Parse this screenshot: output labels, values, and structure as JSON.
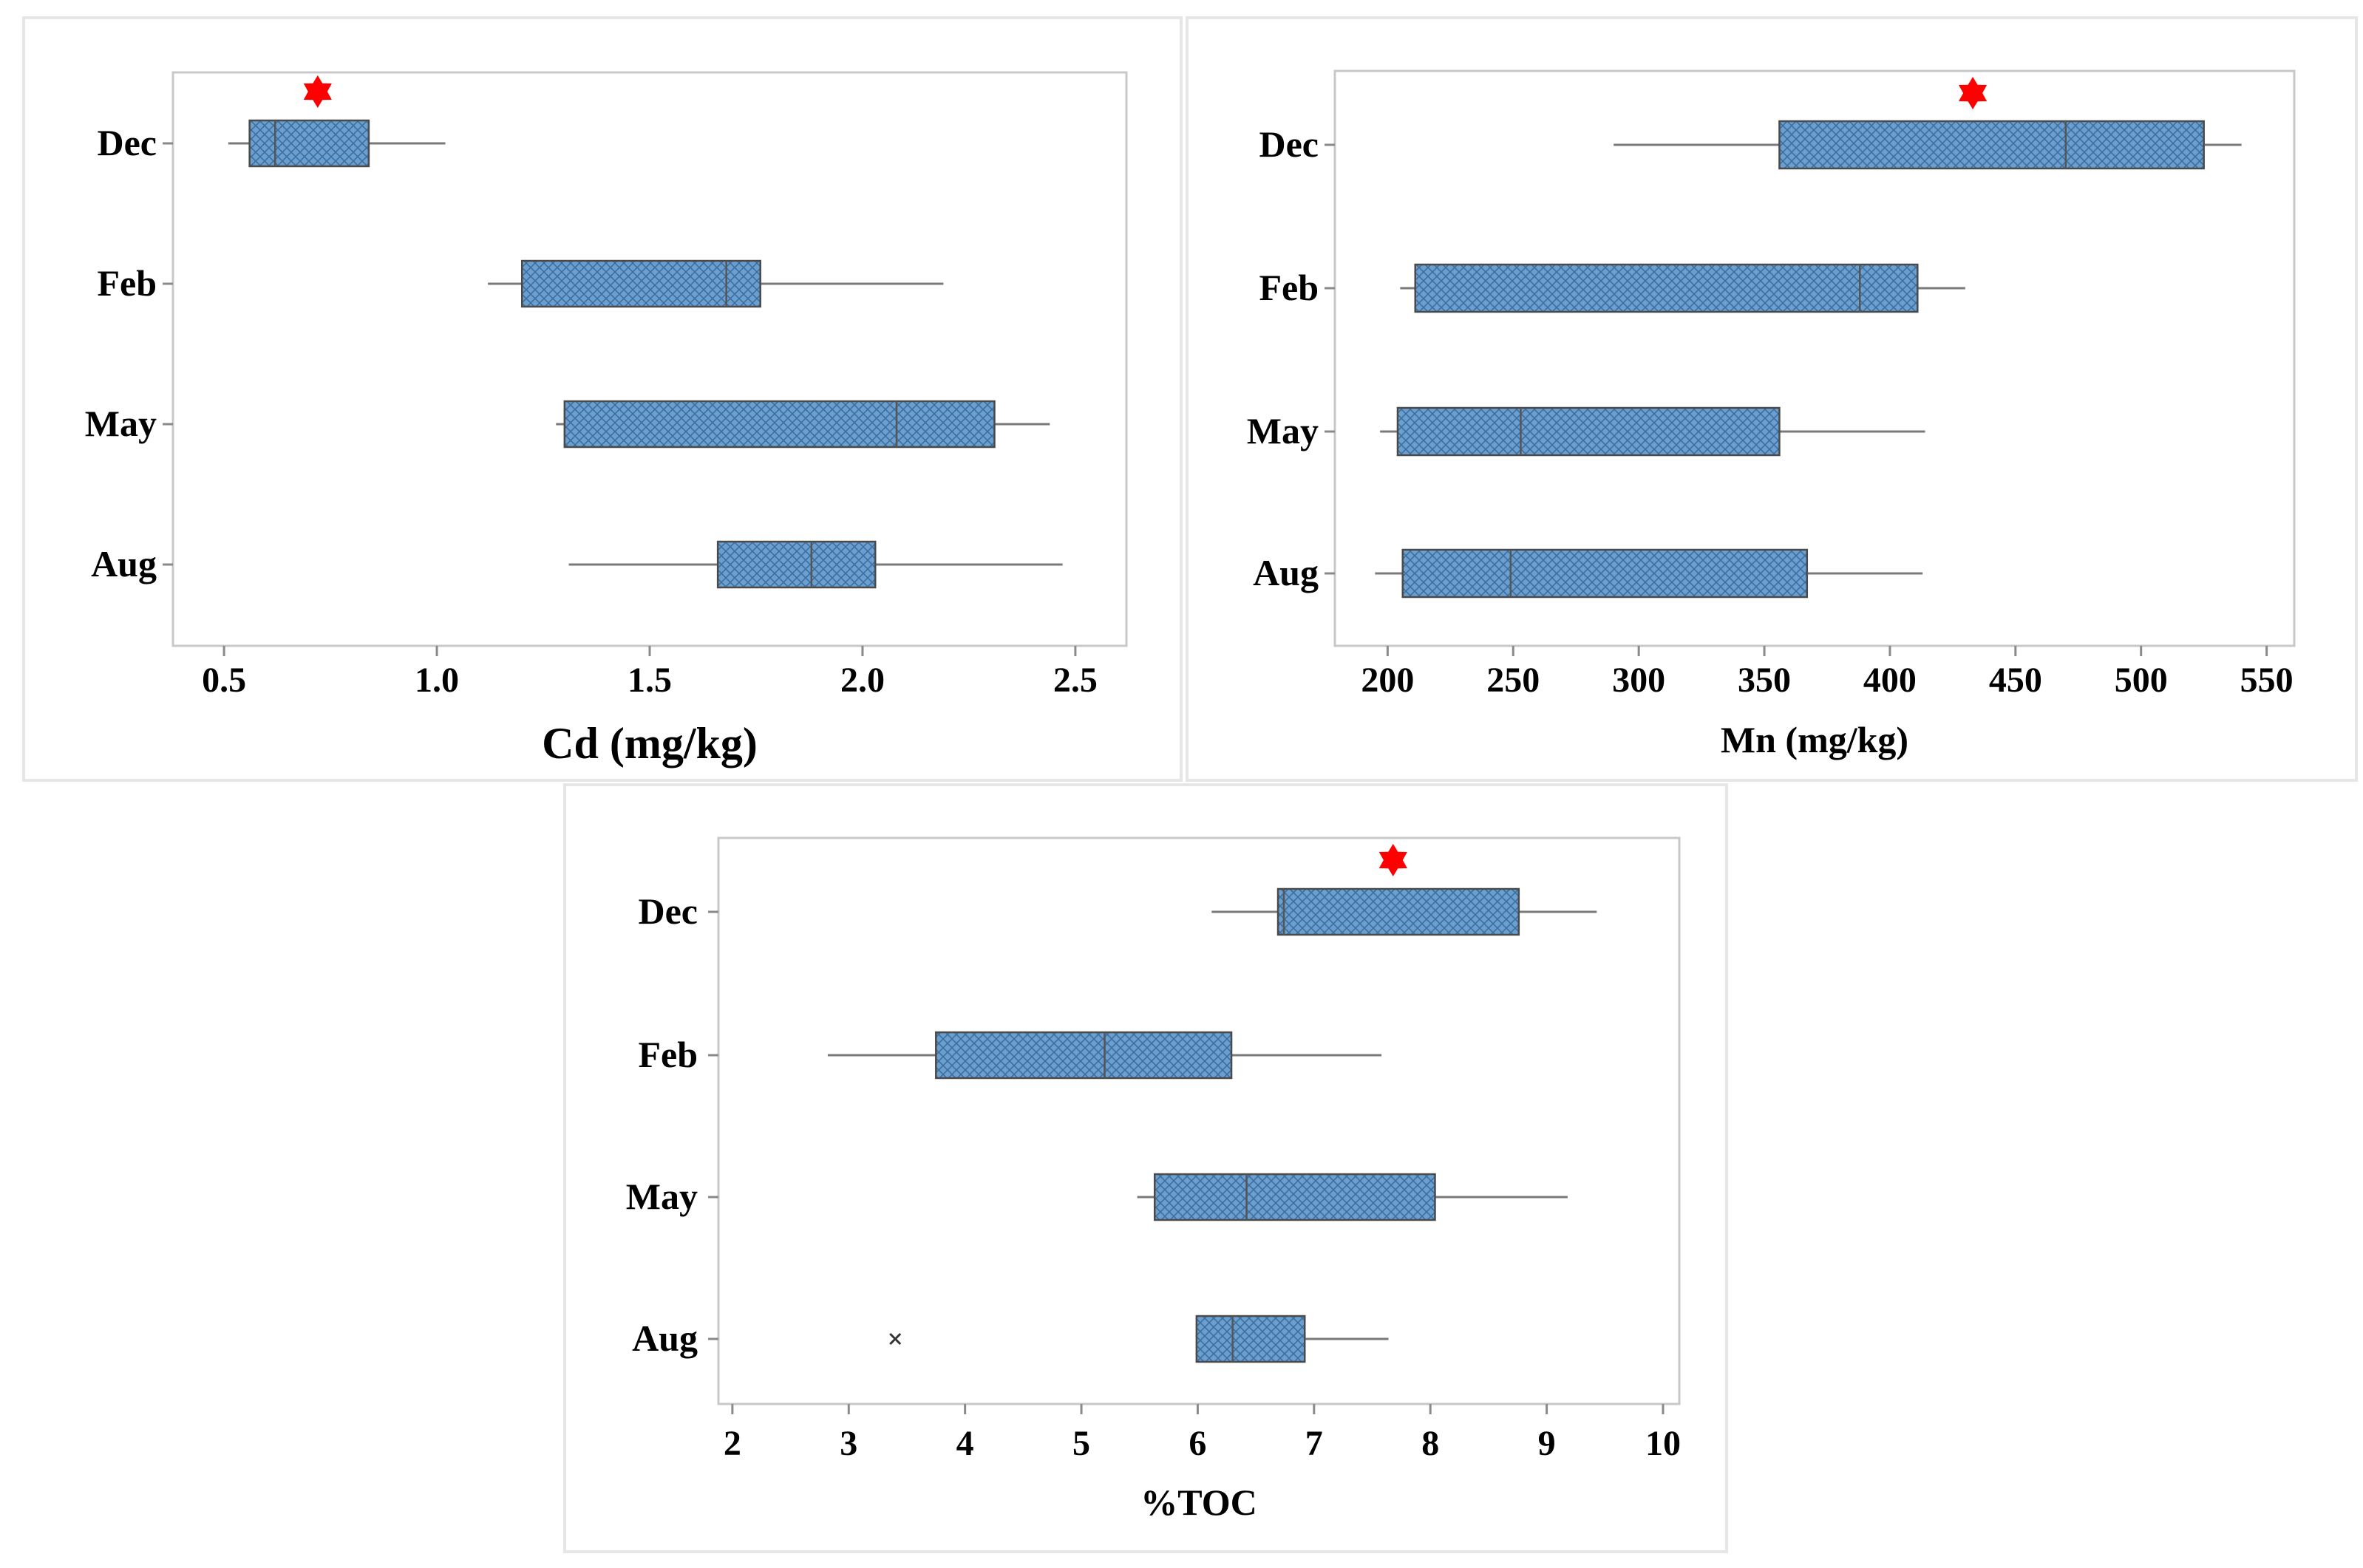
{
  "colors": {
    "box_fill": "#6a9fd0",
    "box_hatch": "#3e6f9e",
    "box_stroke": "#4a4a4a",
    "whisker": "#7a7a7a",
    "marker": "#ff0000",
    "frame": "#c8c8c8"
  },
  "chart_data": [
    {
      "type": "boxplot",
      "orientation": "horizontal",
      "xlabel": "Cd (mg/kg)",
      "categories": [
        "Dec",
        "Feb",
        "May",
        "Aug"
      ],
      "xlim": [
        0.38,
        2.62
      ],
      "xticks": [
        "0.5",
        "1.0",
        "1.5",
        "2.0",
        "2.5"
      ],
      "xtick_values": [
        0.5,
        1.0,
        1.5,
        2.0,
        2.5
      ],
      "boxes": [
        {
          "category": "Dec",
          "whisker_low": 0.51,
          "q1": 0.56,
          "median": 0.62,
          "q3": 0.84,
          "whisker_high": 1.02
        },
        {
          "category": "Feb",
          "whisker_low": 1.12,
          "q1": 1.2,
          "median": 1.68,
          "q3": 1.76,
          "whisker_high": 2.19
        },
        {
          "category": "May",
          "whisker_low": 1.28,
          "q1": 1.3,
          "median": 2.08,
          "q3": 2.31,
          "whisker_high": 2.44
        },
        {
          "category": "Aug",
          "whisker_low": 1.31,
          "q1": 1.66,
          "median": 1.88,
          "q3": 2.03,
          "whisker_high": 2.47
        }
      ],
      "markers": [
        {
          "category": "Dec",
          "x": 0.72,
          "symbol": "star"
        }
      ],
      "outliers": []
    },
    {
      "type": "boxplot",
      "orientation": "horizontal",
      "xlabel": "Mn (mg/kg)",
      "categories": [
        "Dec",
        "Feb",
        "May",
        "Aug"
      ],
      "xlim": [
        179,
        561
      ],
      "xticks": [
        "200",
        "250",
        "300",
        "350",
        "400",
        "450",
        "500",
        "550"
      ],
      "xtick_values": [
        200,
        250,
        300,
        350,
        400,
        450,
        500,
        550
      ],
      "boxes": [
        {
          "category": "Dec",
          "whisker_low": 290,
          "q1": 356,
          "median": 470,
          "q3": 525,
          "whisker_high": 540
        },
        {
          "category": "Feb",
          "whisker_low": 205,
          "q1": 211,
          "median": 388,
          "q3": 411,
          "whisker_high": 430
        },
        {
          "category": "May",
          "whisker_low": 197,
          "q1": 204,
          "median": 253,
          "q3": 356,
          "whisker_high": 414
        },
        {
          "category": "Aug",
          "whisker_low": 195,
          "q1": 206,
          "median": 249,
          "q3": 367,
          "whisker_high": 413
        }
      ],
      "markers": [
        {
          "category": "Dec",
          "x": 433,
          "symbol": "star"
        }
      ],
      "outliers": []
    },
    {
      "type": "boxplot",
      "orientation": "horizontal",
      "xlabel": "%TOC",
      "categories": [
        "Dec",
        "Feb",
        "May",
        "Aug"
      ],
      "xlim": [
        1.88,
        10.14
      ],
      "xticks": [
        "2",
        "3",
        "4",
        "5",
        "6",
        "7",
        "8",
        "9",
        "10"
      ],
      "xtick_values": [
        2,
        3,
        4,
        5,
        6,
        7,
        8,
        9,
        10
      ],
      "boxes": [
        {
          "category": "Dec",
          "whisker_low": 6.12,
          "q1": 6.69,
          "median": 6.74,
          "q3": 8.76,
          "whisker_high": 9.43
        },
        {
          "category": "Feb",
          "whisker_low": 2.82,
          "q1": 3.75,
          "median": 5.2,
          "q3": 6.29,
          "whisker_high": 7.58
        },
        {
          "category": "May",
          "whisker_low": 5.48,
          "q1": 5.63,
          "median": 6.42,
          "q3": 8.04,
          "whisker_high": 9.18
        },
        {
          "category": "Aug",
          "whisker_low": 5.99,
          "q1": 5.99,
          "median": 6.3,
          "q3": 6.92,
          "whisker_high": 7.64
        }
      ],
      "markers": [
        {
          "category": "Dec",
          "x": 7.68,
          "symbol": "star"
        }
      ],
      "outliers": [
        {
          "category": "Aug",
          "x": 3.4
        }
      ]
    }
  ]
}
